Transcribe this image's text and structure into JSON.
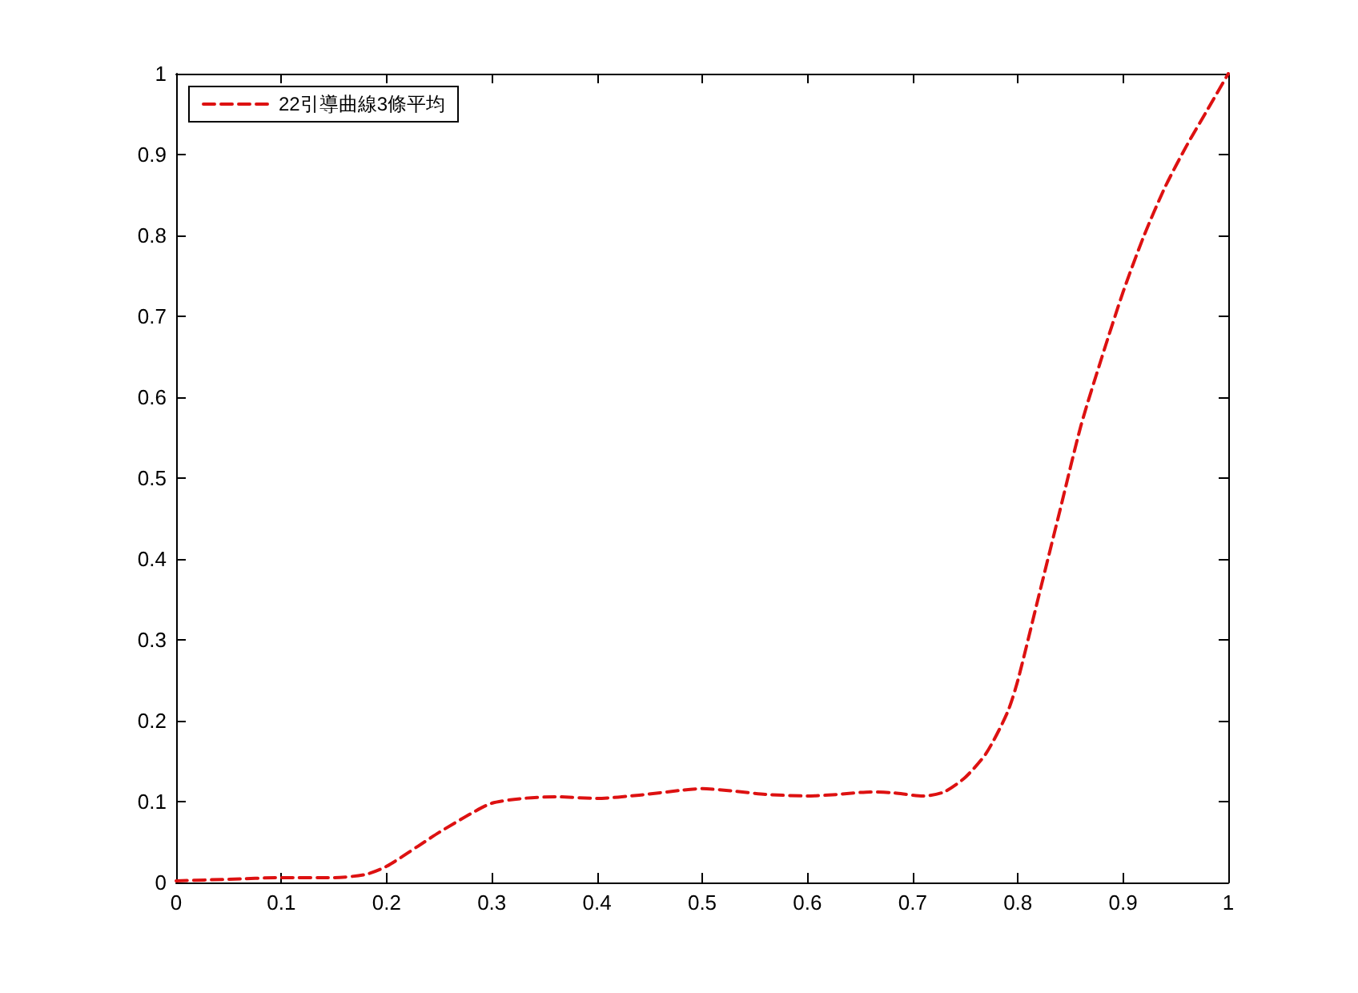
{
  "chart_data": {
    "type": "line",
    "x": [
      0,
      0.05,
      0.1,
      0.15,
      0.18,
      0.2,
      0.23,
      0.25,
      0.28,
      0.3,
      0.33,
      0.36,
      0.4,
      0.44,
      0.48,
      0.5,
      0.53,
      0.56,
      0.6,
      0.63,
      0.66,
      0.68,
      0.71,
      0.73,
      0.75,
      0.77,
      0.79,
      0.8,
      0.82,
      0.84,
      0.86,
      0.88,
      0.9,
      0.92,
      0.94,
      0.96,
      0.98,
      1
    ],
    "series": [
      {
        "name": "22引導曲線3條平均",
        "color": "#dd1111",
        "values": [
          0.002,
          0.004,
          0.006,
          0.006,
          0.01,
          0.02,
          0.045,
          0.062,
          0.085,
          0.098,
          0.104,
          0.106,
          0.104,
          0.108,
          0.114,
          0.116,
          0.113,
          0.109,
          0.107,
          0.109,
          0.112,
          0.111,
          0.107,
          0.112,
          0.13,
          0.16,
          0.21,
          0.25,
          0.355,
          0.46,
          0.565,
          0.65,
          0.73,
          0.8,
          0.86,
          0.91,
          0.955,
          1
        ]
      }
    ],
    "xlim": [
      0,
      1
    ],
    "xticks": [
      0,
      0.1,
      0.2,
      0.3,
      0.4,
      0.5,
      0.6,
      0.7,
      0.8,
      0.9,
      1
    ],
    "ylim": [
      0,
      1
    ],
    "yticks": [
      0,
      0.1,
      0.2,
      0.3,
      0.4,
      0.5,
      0.6,
      0.7,
      0.8,
      0.9,
      1
    ],
    "grid": false,
    "legend": "top left",
    "marker": "none",
    "line_style": "dashed"
  }
}
